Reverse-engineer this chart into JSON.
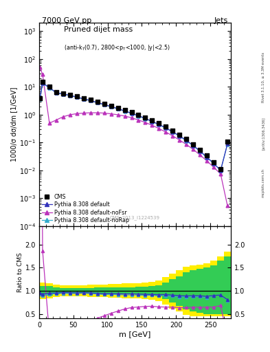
{
  "title_left": "7000 GeV pp",
  "title_right": "Jets",
  "ylabel_main": "1000/σ dσ/dm [1/GeV]",
  "ylabel_ratio": "Ratio to CMS",
  "xlabel": "m [GeV]",
  "watermark": "CMS_2013_I1224539",
  "rivet_text": "Rivet 3.1.10, ≥ 3.3M events",
  "arxiv_text": "[arXiv:1306.3436]",
  "mcplots_text": "mcplots.cern.ch",
  "cms_x": [
    1,
    5,
    15,
    25,
    35,
    45,
    55,
    65,
    75,
    85,
    95,
    105,
    115,
    125,
    135,
    145,
    155,
    165,
    175,
    185,
    195,
    205,
    215,
    225,
    235,
    245,
    255,
    265,
    275
  ],
  "cms_y": [
    4.0,
    15.0,
    10.0,
    6.5,
    5.8,
    5.2,
    4.5,
    3.9,
    3.4,
    2.9,
    2.5,
    2.1,
    1.78,
    1.48,
    1.22,
    1.0,
    0.8,
    0.63,
    0.49,
    0.37,
    0.27,
    0.195,
    0.135,
    0.088,
    0.056,
    0.034,
    0.02,
    0.011,
    0.11
  ],
  "py_default_x": [
    1,
    5,
    15,
    25,
    35,
    45,
    55,
    65,
    75,
    85,
    95,
    105,
    115,
    125,
    135,
    145,
    155,
    165,
    175,
    185,
    195,
    205,
    215,
    225,
    235,
    245,
    255,
    265,
    275
  ],
  "py_default_y": [
    3.8,
    14.0,
    9.5,
    6.2,
    5.6,
    5.0,
    4.3,
    3.75,
    3.25,
    2.75,
    2.35,
    1.98,
    1.67,
    1.38,
    1.14,
    0.93,
    0.74,
    0.58,
    0.45,
    0.34,
    0.245,
    0.175,
    0.12,
    0.079,
    0.05,
    0.03,
    0.018,
    0.01,
    0.089
  ],
  "py_noFsr_x": [
    1,
    5,
    15,
    25,
    35,
    45,
    55,
    65,
    75,
    85,
    95,
    105,
    115,
    125,
    135,
    145,
    155,
    165,
    175,
    185,
    195,
    205,
    215,
    225,
    235,
    245,
    255,
    265,
    275
  ],
  "py_noFsr_y": [
    50.0,
    28.0,
    0.5,
    0.65,
    0.85,
    1.0,
    1.1,
    1.15,
    1.18,
    1.18,
    1.15,
    1.08,
    1.0,
    0.9,
    0.78,
    0.65,
    0.53,
    0.42,
    0.32,
    0.24,
    0.175,
    0.124,
    0.086,
    0.057,
    0.036,
    0.022,
    0.013,
    0.0075,
    0.00055
  ],
  "py_noRap_x": [
    1,
    5,
    15,
    25,
    35,
    45,
    55,
    65,
    75,
    85,
    95,
    105,
    115,
    125,
    135,
    145,
    155,
    165,
    175,
    185,
    195,
    205,
    215,
    225,
    235,
    245,
    255,
    265,
    275
  ],
  "py_noRap_y": [
    3.7,
    13.5,
    9.3,
    6.1,
    5.5,
    4.9,
    4.25,
    3.7,
    3.2,
    2.7,
    2.3,
    1.94,
    1.63,
    1.35,
    1.11,
    0.91,
    0.72,
    0.57,
    0.44,
    0.33,
    0.24,
    0.17,
    0.118,
    0.077,
    0.049,
    0.029,
    0.018,
    0.01,
    0.087
  ],
  "ratio_x": [
    1,
    5,
    15,
    25,
    35,
    45,
    55,
    65,
    75,
    85,
    95,
    105,
    115,
    125,
    135,
    145,
    155,
    165,
    175,
    185,
    195,
    205,
    215,
    225,
    235,
    245,
    255,
    265,
    275
  ],
  "ratio_default_y": [
    0.95,
    0.933,
    0.95,
    0.954,
    0.966,
    0.962,
    0.956,
    0.962,
    0.956,
    0.948,
    0.94,
    0.943,
    0.938,
    0.932,
    0.934,
    0.93,
    0.925,
    0.921,
    0.918,
    0.919,
    0.907,
    0.897,
    0.889,
    0.898,
    0.893,
    0.882,
    0.9,
    0.909,
    0.809
  ],
  "ratio_noFsr_y": [
    12.5,
    1.87,
    0.05,
    0.1,
    0.147,
    0.192,
    0.244,
    0.295,
    0.347,
    0.407,
    0.46,
    0.514,
    0.562,
    0.608,
    0.639,
    0.65,
    0.663,
    0.667,
    0.653,
    0.649,
    0.648,
    0.636,
    0.637,
    0.648,
    0.643,
    0.647,
    0.65,
    0.682,
    0.005
  ],
  "ratio_noRap_y": [
    0.925,
    0.9,
    0.93,
    0.938,
    0.948,
    0.942,
    0.944,
    0.949,
    0.941,
    0.931,
    0.92,
    0.924,
    0.916,
    0.912,
    0.909,
    0.91,
    0.9,
    0.905,
    0.898,
    0.892,
    0.889,
    0.872,
    0.874,
    0.875,
    0.875,
    0.853,
    0.9,
    0.909,
    0.791
  ],
  "band_x_edges": [
    0,
    10,
    20,
    30,
    40,
    50,
    60,
    70,
    80,
    90,
    100,
    110,
    120,
    130,
    140,
    150,
    160,
    170,
    180,
    190,
    200,
    210,
    220,
    230,
    240,
    250,
    260,
    270,
    280
  ],
  "band_green_low": [
    0.9,
    0.9,
    0.93,
    0.94,
    0.94,
    0.94,
    0.94,
    0.94,
    0.93,
    0.93,
    0.93,
    0.92,
    0.92,
    0.92,
    0.91,
    0.91,
    0.9,
    0.88,
    0.82,
    0.75,
    0.68,
    0.6,
    0.55,
    0.52,
    0.5,
    0.5,
    0.5,
    0.5
  ],
  "band_green_high": [
    1.1,
    1.1,
    1.07,
    1.06,
    1.06,
    1.06,
    1.06,
    1.06,
    1.07,
    1.07,
    1.07,
    1.08,
    1.08,
    1.08,
    1.09,
    1.09,
    1.1,
    1.12,
    1.18,
    1.25,
    1.32,
    1.4,
    1.45,
    1.48,
    1.5,
    1.55,
    1.65,
    1.75
  ],
  "band_yellow_low": [
    0.82,
    0.83,
    0.87,
    0.88,
    0.88,
    0.88,
    0.88,
    0.87,
    0.86,
    0.86,
    0.85,
    0.85,
    0.84,
    0.84,
    0.83,
    0.82,
    0.81,
    0.78,
    0.7,
    0.62,
    0.55,
    0.48,
    0.45,
    0.45,
    0.45,
    0.45,
    0.45,
    0.45
  ],
  "band_yellow_high": [
    1.18,
    1.17,
    1.13,
    1.12,
    1.12,
    1.12,
    1.12,
    1.13,
    1.14,
    1.14,
    1.15,
    1.15,
    1.16,
    1.16,
    1.17,
    1.18,
    1.19,
    1.22,
    1.3,
    1.38,
    1.45,
    1.52,
    1.55,
    1.57,
    1.6,
    1.65,
    1.75,
    1.85
  ],
  "color_cms": "#000000",
  "color_default": "#3333bb",
  "color_noFsr": "#bb33bb",
  "color_noRap": "#33aacc",
  "color_green": "#33cc55",
  "color_yellow": "#ffee00",
  "xlim": [
    0,
    280
  ],
  "ylim_ratio": [
    0.4,
    2.4
  ],
  "ratio_yticks": [
    0.5,
    1.0,
    1.5,
    2.0
  ]
}
